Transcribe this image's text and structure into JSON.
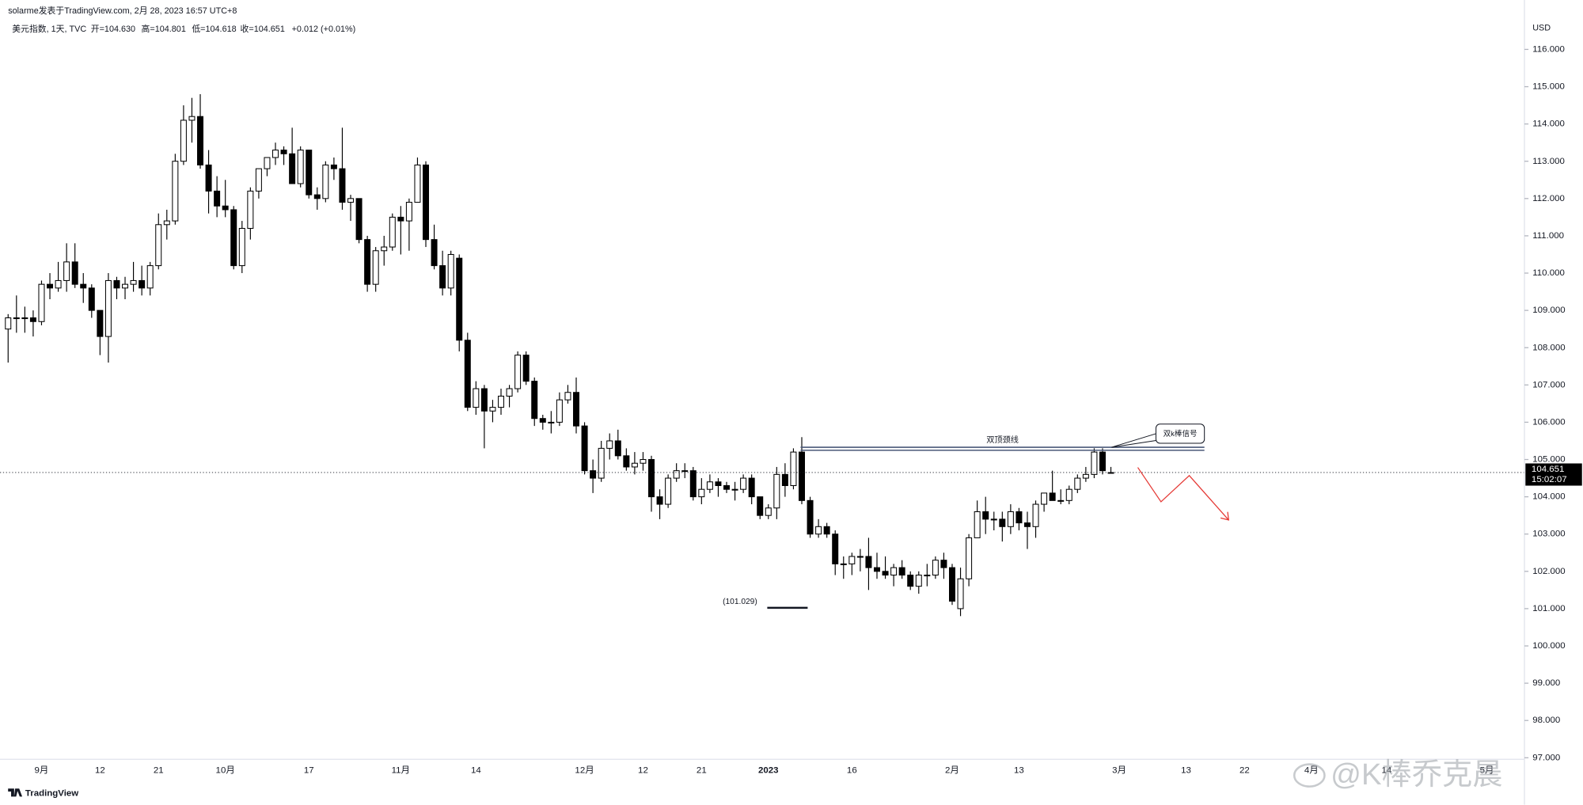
{
  "chart_data": {
    "type": "candlestick",
    "source": "solarme发表于TradingView.com,   2月 28, 2023 16:57 UTC+8",
    "title": "美元指数, 1天, TVC",
    "ohlc_header": [
      "开=104.630",
      "高=104.801",
      "低=104.618",
      "收=104.651",
      "+0.012 (+0.01%)"
    ],
    "y_unit": "USD",
    "categories": [
      null,
      null,
      null,
      null,
      "9月",
      null,
      null,
      null,
      null,
      null,
      null,
      "12",
      null,
      null,
      null,
      null,
      null,
      null,
      "21",
      null,
      null,
      null,
      null,
      null,
      null,
      null,
      "10月",
      null,
      null,
      null,
      null,
      null,
      null,
      null,
      null,
      null,
      "17",
      null,
      null,
      null,
      null,
      null,
      null,
      null,
      null,
      null,
      null,
      "11月",
      null,
      null,
      null,
      null,
      null,
      null,
      null,
      null,
      "14",
      null,
      null,
      null,
      null,
      null,
      null,
      null,
      null,
      null,
      null,
      null,
      null,
      "12月",
      null,
      null,
      null,
      null,
      null,
      null,
      "12",
      null,
      null,
      null,
      null,
      null,
      null,
      "21",
      null,
      null,
      null,
      null,
      null,
      null,
      null,
      "2023",
      null,
      null,
      null,
      null,
      null,
      null,
      null,
      null,
      null,
      "16",
      null,
      null,
      null,
      null,
      null,
      null,
      null,
      null,
      null,
      null,
      null,
      "2月",
      null,
      null,
      null,
      null,
      null,
      null,
      null,
      "13",
      null,
      null,
      null,
      null,
      null,
      null,
      null,
      null,
      null,
      null,
      null,
      "3月",
      null,
      null,
      null,
      null,
      null,
      null,
      null,
      "13",
      null,
      null,
      null,
      null,
      null,
      null,
      "22",
      null,
      null,
      null,
      null,
      null,
      null,
      null,
      "4月",
      null,
      null,
      null,
      null,
      null,
      null,
      null,
      null,
      "14",
      null,
      null,
      null,
      null,
      null,
      null,
      null,
      null,
      null,
      null,
      null,
      "5月",
      null,
      null,
      null,
      null
    ],
    "open": [
      108.5,
      108.8,
      108.8,
      108.8,
      108.7,
      109.7,
      109.6,
      109.8,
      110.3,
      109.7,
      109.6,
      109.0,
      108.3,
      109.8,
      109.6,
      109.7,
      109.8,
      109.6,
      110.2,
      111.3,
      111.4,
      113.0,
      114.1,
      114.2,
      112.9,
      112.2,
      111.8,
      111.7,
      110.2,
      111.2,
      112.2,
      112.8,
      113.1,
      113.3,
      113.2,
      112.4,
      113.3,
      112.1,
      112.0,
      112.9,
      112.8,
      111.9,
      112.0,
      110.9,
      109.7,
      110.6,
      110.7,
      111.5,
      111.4,
      111.9,
      112.9,
      110.9,
      110.2,
      109.6,
      110.4,
      108.2,
      106.4,
      106.9,
      106.3,
      106.4,
      106.7,
      106.9,
      107.8,
      107.1,
      106.1,
      106.0,
      106.0,
      106.6,
      106.8,
      105.9,
      104.7,
      104.5,
      105.3,
      105.5,
      105.1,
      104.8,
      104.9,
      105.0,
      104.0,
      103.8,
      104.5,
      104.7,
      104.7,
      104.0,
      104.2,
      104.4,
      104.3,
      104.2,
      104.2,
      104.5,
      104.0,
      103.5,
      103.7,
      104.6,
      104.3,
      105.2,
      103.9,
      103.0,
      103.2,
      103.0,
      102.2,
      102.2,
      102.4,
      102.4,
      102.1,
      102.0,
      101.9,
      102.1,
      101.9,
      101.6,
      101.9,
      101.9,
      102.3,
      102.1,
      101.0,
      101.8,
      102.9,
      103.6,
      103.4,
      103.4,
      103.2,
      103.6,
      103.3,
      103.2,
      103.8,
      104.1,
      103.9,
      103.9,
      104.2,
      104.5,
      104.6,
      105.2,
      104.63,
      null,
      null,
      null,
      null,
      null,
      null,
      null,
      null,
      null,
      null,
      null,
      null,
      null,
      null,
      null,
      null,
      null,
      null,
      null,
      null,
      null,
      null,
      null,
      null,
      null,
      null,
      null,
      null,
      null,
      null,
      null,
      null,
      null,
      null,
      null,
      null,
      null,
      null,
      null,
      null,
      null,
      null,
      null,
      null,
      null,
      null,
      null,
      null,
      null
    ],
    "high": [
      108.9,
      109.4,
      109.1,
      109.0,
      109.8,
      110.0,
      110.3,
      110.8,
      110.8,
      110.0,
      109.7,
      109.0,
      110.0,
      109.9,
      109.9,
      110.3,
      110.2,
      110.3,
      111.6,
      111.7,
      113.2,
      114.5,
      114.7,
      114.8,
      113.3,
      112.6,
      112.5,
      111.8,
      111.4,
      112.3,
      112.8,
      113.1,
      113.5,
      113.4,
      113.9,
      113.4,
      113.3,
      112.3,
      113.0,
      113.1,
      113.9,
      112.1,
      112.0,
      111.0,
      110.7,
      111.0,
      111.6,
      111.8,
      112.0,
      113.1,
      113.0,
      111.3,
      110.6,
      110.6,
      110.5,
      108.4,
      107.1,
      107.0,
      106.6,
      106.9,
      107.0,
      107.9,
      107.9,
      107.2,
      106.2,
      106.3,
      106.8,
      107.0,
      107.2,
      106.0,
      105.0,
      105.5,
      105.7,
      105.8,
      105.3,
      105.2,
      105.2,
      105.1,
      104.2,
      104.6,
      104.9,
      104.9,
      104.8,
      104.5,
      104.6,
      104.5,
      104.4,
      104.4,
      104.6,
      104.6,
      104.0,
      103.8,
      104.8,
      104.9,
      105.3,
      105.6,
      104.0,
      103.4,
      103.3,
      103.1,
      102.4,
      102.5,
      102.6,
      102.9,
      102.5,
      102.4,
      102.2,
      102.3,
      102.0,
      102.0,
      102.2,
      102.4,
      102.5,
      102.2,
      102.1,
      103.0,
      103.9,
      104.0,
      103.6,
      103.6,
      103.8,
      103.7,
      103.6,
      103.9,
      104.1,
      104.7,
      104.2,
      104.3,
      104.6,
      104.8,
      105.3,
      105.3,
      104.801,
      null,
      null,
      null,
      null,
      null,
      null,
      null,
      null,
      null,
      null,
      null,
      null,
      null,
      null,
      null,
      null,
      null,
      null,
      null,
      null,
      null,
      null,
      null,
      null,
      null,
      null,
      null,
      null,
      null,
      null,
      null,
      null,
      null,
      null,
      null,
      null,
      null,
      null,
      null,
      null,
      null,
      null,
      null,
      null,
      null,
      null,
      null,
      null,
      null
    ],
    "low": [
      107.6,
      108.4,
      108.4,
      108.3,
      108.6,
      109.3,
      109.5,
      109.5,
      109.6,
      109.2,
      108.8,
      107.8,
      107.6,
      109.3,
      109.3,
      109.5,
      109.4,
      109.4,
      110.1,
      110.9,
      111.3,
      112.9,
      113.5,
      112.8,
      111.6,
      111.5,
      111.5,
      110.1,
      110.0,
      110.9,
      112.0,
      112.6,
      112.9,
      112.9,
      112.4,
      112.3,
      112.0,
      111.7,
      111.9,
      112.5,
      111.7,
      111.4,
      110.8,
      109.5,
      109.5,
      110.2,
      110.6,
      110.5,
      110.6,
      111.9,
      110.7,
      110.1,
      109.4,
      109.4,
      107.9,
      106.3,
      106.2,
      105.3,
      106.0,
      106.2,
      106.4,
      106.8,
      107.0,
      105.9,
      105.8,
      105.7,
      105.9,
      106.5,
      105.7,
      104.6,
      104.1,
      104.4,
      105.0,
      105.0,
      104.7,
      104.6,
      104.7,
      103.6,
      103.4,
      103.7,
      104.4,
      104.5,
      103.9,
      103.8,
      104.1,
      104.0,
      104.1,
      103.9,
      104.1,
      103.8,
      103.4,
      103.4,
      103.4,
      104.0,
      104.2,
      103.8,
      102.9,
      102.9,
      102.9,
      101.9,
      101.8,
      101.9,
      102.0,
      101.5,
      101.8,
      101.8,
      101.6,
      101.8,
      101.5,
      101.4,
      101.6,
      101.8,
      101.8,
      101.1,
      100.8,
      101.6,
      102.9,
      103.0,
      103.1,
      102.8,
      103.0,
      103.1,
      102.6,
      102.9,
      103.6,
      103.9,
      103.8,
      103.8,
      104.1,
      104.4,
      104.5,
      104.6,
      104.618,
      null,
      null,
      null,
      null,
      null,
      null,
      null,
      null,
      null,
      null,
      null,
      null,
      null,
      null,
      null,
      null,
      null,
      null,
      null,
      null,
      null,
      null,
      null,
      null,
      null,
      null,
      null,
      null,
      null,
      null,
      null,
      null,
      null,
      null,
      null,
      null,
      null,
      null,
      null,
      null,
      null,
      null,
      null,
      null,
      null,
      null,
      null,
      null,
      null
    ],
    "close": [
      108.8,
      108.8,
      108.8,
      108.7,
      109.7,
      109.6,
      109.8,
      110.3,
      109.7,
      109.6,
      109.0,
      108.3,
      109.8,
      109.6,
      109.7,
      109.8,
      109.6,
      110.2,
      111.3,
      111.4,
      113.0,
      114.1,
      114.2,
      112.9,
      112.2,
      111.8,
      111.7,
      110.2,
      111.2,
      112.2,
      112.8,
      113.1,
      113.3,
      113.2,
      112.4,
      113.3,
      112.1,
      112.0,
      112.9,
      112.8,
      111.9,
      112.0,
      110.9,
      109.7,
      110.6,
      110.7,
      111.5,
      111.4,
      111.9,
      112.9,
      110.9,
      110.2,
      109.6,
      110.5,
      108.2,
      106.4,
      106.9,
      106.3,
      106.4,
      106.7,
      106.9,
      107.8,
      107.1,
      106.1,
      106.0,
      106.0,
      106.6,
      106.8,
      105.9,
      104.7,
      104.5,
      105.3,
      105.5,
      105.1,
      104.8,
      104.9,
      105.0,
      104.0,
      103.8,
      104.5,
      104.7,
      104.7,
      104.0,
      104.2,
      104.4,
      104.3,
      104.2,
      104.2,
      104.5,
      104.0,
      103.5,
      103.7,
      104.6,
      104.3,
      105.2,
      103.9,
      103.0,
      103.2,
      103.0,
      102.2,
      102.2,
      102.4,
      102.4,
      102.1,
      102.0,
      101.9,
      102.1,
      101.9,
      101.6,
      101.9,
      101.9,
      102.3,
      102.1,
      101.2,
      101.8,
      102.9,
      103.6,
      103.4,
      103.4,
      103.2,
      103.6,
      103.3,
      103.2,
      103.8,
      104.1,
      103.9,
      103.9,
      104.2,
      104.5,
      104.6,
      105.2,
      104.7,
      104.651,
      null,
      null,
      null,
      null,
      null,
      null,
      null,
      null,
      null,
      null,
      null,
      null,
      null,
      null,
      null,
      null,
      null,
      null,
      null,
      null,
      null,
      null,
      null,
      null,
      null,
      null,
      null,
      null,
      null,
      null,
      null,
      null,
      null,
      null,
      null,
      null,
      null,
      null,
      null,
      null,
      null,
      null,
      null,
      null,
      null,
      null,
      null,
      null,
      null
    ],
    "up_color": "#ffffff",
    "down_color": "#000000",
    "ylim": [
      96.96,
      117
    ],
    "yticks": [
      {
        "value": 97,
        "label": "97.000"
      },
      {
        "value": 98,
        "label": "98.000"
      },
      {
        "value": 99,
        "label": "99.000"
      },
      {
        "value": 100,
        "label": "100.000"
      },
      {
        "value": 101,
        "label": "101.000"
      },
      {
        "value": 102,
        "label": "102.000"
      },
      {
        "value": 103,
        "label": "103.000"
      },
      {
        "value": 104,
        "label": "104.000"
      },
      {
        "value": 105,
        "label": "105.000"
      },
      {
        "value": 106,
        "label": "106.000"
      },
      {
        "value": 107,
        "label": "107.000"
      },
      {
        "value": 108,
        "label": "108.000"
      },
      {
        "value": 109,
        "label": "109.000"
      },
      {
        "value": 110,
        "label": "110.000"
      },
      {
        "value": 111,
        "label": "111.000"
      },
      {
        "value": 112,
        "label": "112.000"
      },
      {
        "value": 113,
        "label": "113.000"
      },
      {
        "value": 114,
        "label": "114.000"
      },
      {
        "value": 115,
        "label": "115.000"
      },
      {
        "value": 116,
        "label": "116.000"
      }
    ],
    "grid": false,
    "last_price": 104.651,
    "countdown": "15:02:07",
    "annotations": {
      "neckline": "双顶颈线",
      "signal": "双k棒信号",
      "low_mark": "(101.029)"
    },
    "brand": "TradingView",
    "watermark": "@K棒乔克晨"
  }
}
